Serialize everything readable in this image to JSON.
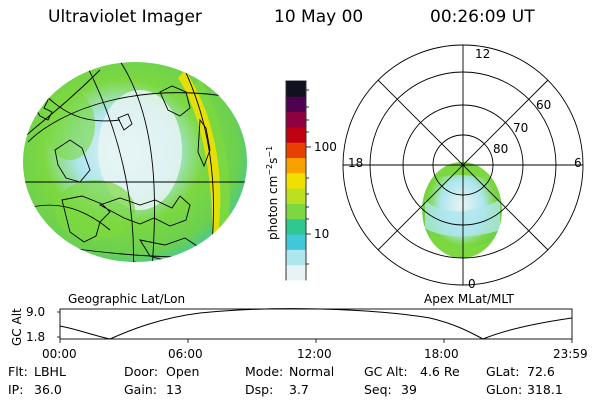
{
  "header": {
    "instrument": "Ultraviolet Imager",
    "date": "10 May 00",
    "time": "00:26:09 UT"
  },
  "colorbar": {
    "label_main": "photon cm",
    "label_sup1": "−2",
    "label_s": "s",
    "label_sup2": "−1",
    "ticks": [
      "100",
      "10"
    ],
    "scale": "log"
  },
  "left_image": {
    "caption": "Geographic Lat/Lon"
  },
  "right_image": {
    "caption": "Apex MLat/MLT",
    "mlt_labels": [
      "12",
      "18",
      "6",
      "0"
    ],
    "mlat_labels": [
      "60",
      "70",
      "80"
    ]
  },
  "altitude_plot": {
    "ylabel_top": "GC Alt",
    "yticks": [
      "9.0",
      "1.8"
    ],
    "xticks": [
      "00:00",
      "06:00",
      "12:00",
      "18:00",
      "23:59"
    ]
  },
  "info": {
    "flt_label": "Flt:",
    "flt_value": "LBHL",
    "door_label": "Door:",
    "door_value": "Open",
    "mode_label": "Mode:",
    "mode_value": "Normal",
    "gcalt_label": "GC Alt:",
    "gcalt_value": "4.6 Re",
    "glat_label": "GLat:",
    "glat_value": "72.6",
    "ip_label": "IP:",
    "ip_value": "36.0",
    "gain_label": "Gain:",
    "gain_value": "13",
    "dsp_label": "Dsp:",
    "dsp_value": "3.7",
    "seq_label": "Seq:",
    "seq_value": "39",
    "glon_label": "GLon:",
    "glon_value": "318.1"
  },
  "colors": {
    "palette": [
      "#e8f4f4",
      "#aee6ee",
      "#40c8d8",
      "#30c890",
      "#7cd840",
      "#bce020",
      "#f0e000",
      "#f8a000",
      "#e84000",
      "#c00010",
      "#900040",
      "#500050",
      "#101020"
    ]
  }
}
